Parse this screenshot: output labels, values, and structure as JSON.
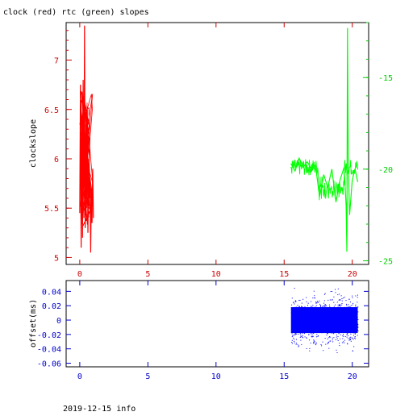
{
  "title": "clock (red) rtc (green) slopes",
  "footer": "2019-12-15 info",
  "colors": {
    "clock": "#ff0000",
    "rtc": "#00ff00",
    "offset": "#0000ff",
    "left_axis": "#cc0000",
    "right_axis": "#00cc00",
    "bottom_axis": "#0000cc",
    "frame": "#000000"
  },
  "chart_data": [
    {
      "type": "line",
      "name": "slopes",
      "title": "clock (red) rtc (green) slopes",
      "ylabel": "clockslope",
      "xlim": [
        -1,
        21.2
      ],
      "ylim_left": [
        4.93,
        7.38
      ],
      "ylim_right": [
        -25.2,
        -12.0
      ],
      "x_ticks": [
        "0",
        "5",
        "10",
        "15",
        "20"
      ],
      "y_ticks_left": [
        "5",
        "5.5",
        "6",
        "6.5",
        "7"
      ],
      "y_ticks_right": [
        "-25",
        "-20",
        "-15"
      ],
      "grid": false,
      "series": [
        {
          "axis": "left",
          "color": "#ff0000",
          "x": [
            0.0,
            0.05,
            0.1,
            0.15,
            0.2,
            0.25,
            0.3,
            0.35,
            0.4,
            0.45,
            0.5,
            0.55,
            0.6,
            0.65,
            0.7,
            0.75,
            0.8,
            0.85,
            0.9,
            0.95,
            1.0
          ],
          "y": [
            5.45,
            6.75,
            5.1,
            6.4,
            5.2,
            6.8,
            5.4,
            7.35,
            5.3,
            6.2,
            5.5,
            6.5,
            5.25,
            6.0,
            5.6,
            5.8,
            5.05,
            5.7,
            5.35,
            5.9,
            5.4
          ]
        },
        {
          "axis": "right",
          "color": "#00ff00",
          "x": [
            15.5,
            15.8,
            16.1,
            16.4,
            16.7,
            17.0,
            17.3,
            17.6,
            17.9,
            18.2,
            18.5,
            18.8,
            19.1,
            19.4,
            19.55,
            19.6,
            19.65,
            19.7,
            19.75,
            19.8,
            20.0,
            20.2,
            20.4
          ],
          "y": [
            -19.7,
            -20.1,
            -19.4,
            -19.9,
            -19.6,
            -20.0,
            -19.8,
            -21.5,
            -20.3,
            -21.0,
            -20.0,
            -21.8,
            -20.6,
            -19.9,
            -22.0,
            -24.5,
            -12.3,
            -19.2,
            -21.0,
            -22.5,
            -20.6,
            -20.0,
            -20.7
          ]
        }
      ]
    },
    {
      "type": "scatter",
      "name": "offset",
      "ylabel": "offset(ms)",
      "xlim": [
        -1,
        21.2
      ],
      "ylim": [
        -0.065,
        0.055
      ],
      "x_ticks": [
        "0",
        "5",
        "10",
        "15",
        "20"
      ],
      "y_ticks": [
        "-0.06",
        "-0.04",
        "-0.02",
        "0",
        "0.02",
        "0.04"
      ],
      "grid": false,
      "series": [
        {
          "color": "#0000ff",
          "x_range": [
            15.5,
            20.4
          ],
          "y_center": 0.0,
          "y_core_spread": 0.018,
          "y_outlier_spread": 0.05
        }
      ]
    }
  ]
}
